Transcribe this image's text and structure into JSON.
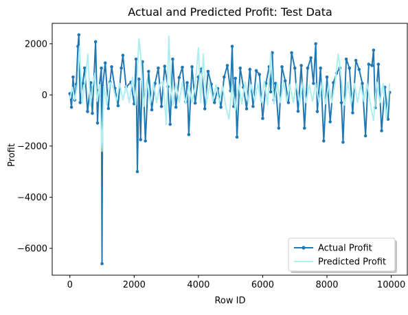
{
  "chart_data": {
    "type": "line",
    "title": "Actual and Predicted Profit: Test Data",
    "xlabel": "Row ID",
    "ylabel": "Profit",
    "xlim": [
      -550,
      10500
    ],
    "ylim": [
      -7050,
      2800
    ],
    "x_ticks": [
      0,
      2000,
      4000,
      6000,
      8000,
      10000
    ],
    "y_ticks": [
      -6000,
      -4000,
      -2000,
      0,
      2000
    ],
    "x_tick_labels": [
      "0",
      "2000",
      "4000",
      "6000",
      "8000",
      "10000"
    ],
    "y_tick_labels": [
      "−6000",
      "−4000",
      "−2000",
      "0",
      "2000"
    ],
    "grid": false,
    "legend": {
      "placement": "lower right",
      "entries": [
        "Actual Profit",
        "Predicted Profit"
      ]
    },
    "series": [
      {
        "name": "Actual Profit",
        "color": "#1f77b4",
        "marker": "circle",
        "x": [
          0,
          50,
          100,
          150,
          200,
          250,
          280,
          320,
          400,
          460,
          550,
          650,
          700,
          800,
          860,
          900,
          980,
          1000,
          1020,
          1100,
          1200,
          1250,
          1300,
          1400,
          1500,
          1600,
          1650,
          1750,
          1900,
          2000,
          2060,
          2100,
          2150,
          2200,
          2260,
          2350,
          2450,
          2550,
          2650,
          2750,
          2850,
          2950,
          3050,
          3120,
          3200,
          3300,
          3400,
          3500,
          3600,
          3650,
          3700,
          3800,
          3900,
          4000,
          4100,
          4200,
          4300,
          4400,
          4500,
          4600,
          4700,
          4800,
          4900,
          5000,
          5050,
          5100,
          5150,
          5200,
          5300,
          5400,
          5500,
          5600,
          5700,
          5800,
          5900,
          6000,
          6100,
          6200,
          6250,
          6300,
          6350,
          6400,
          6500,
          6600,
          6700,
          6800,
          6900,
          7000,
          7100,
          7200,
          7300,
          7400,
          7500,
          7580,
          7650,
          7700,
          7800,
          7900,
          8000,
          8100,
          8200,
          8300,
          8400,
          8450,
          8500,
          8600,
          8700,
          8800,
          8900,
          9000,
          9100,
          9200,
          9300,
          9400,
          9450,
          9500,
          9600,
          9700,
          9800,
          9900,
          9950
        ],
        "values": [
          50,
          -480,
          700,
          -200,
          420,
          1900,
          2350,
          -300,
          450,
          1050,
          -650,
          480,
          -720,
          2080,
          -1100,
          180,
          1050,
          -6600,
          350,
          1250,
          -530,
          500,
          1100,
          260,
          -420,
          1050,
          1550,
          300,
          500,
          -350,
          1400,
          -3000,
          620,
          -1750,
          1300,
          -1800,
          920,
          -580,
          450,
          1050,
          -450,
          1120,
          320,
          -1150,
          1400,
          -480,
          680,
          1080,
          -260,
          480,
          -1550,
          1100,
          -320,
          700,
          1020,
          -540,
          920,
          420,
          -300,
          250,
          -480,
          700,
          1150,
          160,
          1900,
          -450,
          650,
          -1650,
          1050,
          300,
          -540,
          1000,
          -450,
          950,
          800,
          -920,
          450,
          1100,
          120,
          1650,
          -200,
          450,
          -1300,
          1100,
          550,
          -300,
          1650,
          1050,
          -640,
          1150,
          -1300,
          1050,
          1450,
          450,
          2000,
          -650,
          1050,
          -1800,
          700,
          -1050,
          480,
          850,
          1050,
          -300,
          -1850,
          1400,
          1050,
          -700,
          1350,
          1000,
          450,
          -1600,
          1200,
          1150,
          1750,
          -500,
          1200,
          -1400,
          300,
          -950,
          100
        ]
      },
      {
        "name": "Predicted Profit",
        "color": "#aeeeee",
        "marker": "none",
        "x": [
          0,
          80,
          150,
          240,
          300,
          380,
          470,
          560,
          640,
          700,
          780,
          850,
          920,
          1000,
          1060,
          1150,
          1250,
          1350,
          1450,
          1550,
          1650,
          1750,
          1850,
          1950,
          2050,
          2150,
          2200,
          2300,
          2400,
          2500,
          2600,
          2700,
          2800,
          2900,
          3000,
          3080,
          3140,
          3200,
          3300,
          3400,
          3500,
          3600,
          3700,
          3800,
          3900,
          4000,
          4070,
          4150,
          4250,
          4350,
          4450,
          4550,
          4650,
          4750,
          4850,
          4950,
          5050,
          5150,
          5250,
          5350,
          5450,
          5550,
          5650,
          5750,
          5850,
          5950,
          6050,
          6150,
          6250,
          6350,
          6450,
          6550,
          6650,
          6750,
          6850,
          6950,
          7050,
          7150,
          7250,
          7350,
          7450,
          7550,
          7650,
          7750,
          7850,
          7950,
          8050,
          8150,
          8250,
          8350,
          8450,
          8550,
          8650,
          8750,
          8850,
          8950,
          9050,
          9150,
          9250,
          9350,
          9450,
          9550,
          9650,
          9750,
          9850,
          9950
        ],
        "values": [
          -150,
          300,
          -200,
          450,
          1900,
          -300,
          500,
          1600,
          -450,
          300,
          850,
          -250,
          400,
          -2200,
          350,
          -400,
          500,
          300,
          -250,
          450,
          -200,
          350,
          -300,
          700,
          -400,
          2200,
          1600,
          -450,
          600,
          -350,
          450,
          -300,
          400,
          550,
          -1150,
          2300,
          300,
          -400,
          450,
          -300,
          500,
          -350,
          400,
          -300,
          350,
          1850,
          -300,
          1600,
          -350,
          450,
          -250,
          400,
          -300,
          350,
          -450,
          -950,
          400,
          -600,
          450,
          -350,
          500,
          -300,
          400,
          -250,
          450,
          -300,
          550,
          -400,
          1650,
          -350,
          450,
          -300,
          500,
          -250,
          400,
          -300,
          450,
          -350,
          500,
          -300,
          400,
          -250,
          450,
          -300,
          500,
          -350,
          400,
          -300,
          450,
          1600,
          600,
          -400,
          500,
          -350,
          450,
          -300,
          400,
          -250,
          450,
          -350,
          -1000,
          500,
          -300,
          450,
          -950,
          450
        ]
      }
    ]
  }
}
